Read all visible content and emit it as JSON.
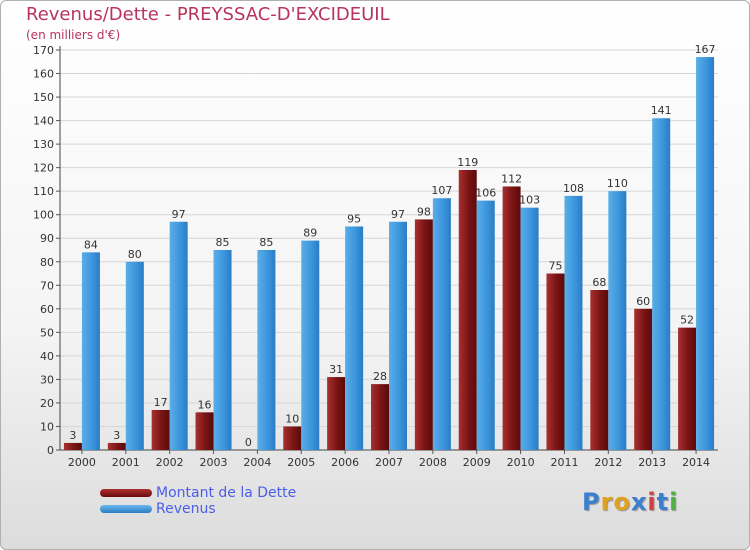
{
  "header": {
    "title": "Revenus/Dette - PREYSSAC-D'EXCIDEUIL",
    "subtitle": "(en milliers d'€)"
  },
  "legend": {
    "items": [
      {
        "label": "Montant de la Dette",
        "color": "#7a1010"
      },
      {
        "label": "Revenus",
        "color": "#3d95dd"
      }
    ]
  },
  "logo": {
    "text": "Proxiti",
    "letters": [
      {
        "ch": "P",
        "color": "#3a7fd0"
      },
      {
        "ch": "r",
        "color": "#e0a020"
      },
      {
        "ch": "o",
        "color": "#e0a020"
      },
      {
        "ch": "x",
        "color": "#3a7fd0"
      },
      {
        "ch": "i",
        "color": "#d04040"
      },
      {
        "ch": "t",
        "color": "#3a7fd0"
      },
      {
        "ch": "i",
        "color": "#50b040"
      }
    ]
  },
  "chart_data": {
    "type": "bar",
    "title": "Revenus/Dette - PREYSSAC-D'EXCIDEUIL",
    "subtitle": "(en milliers d'€)",
    "categories": [
      "2000",
      "2001",
      "2002",
      "2003",
      "2004",
      "2005",
      "2006",
      "2007",
      "2008",
      "2009",
      "2010",
      "2011",
      "2012",
      "2013",
      "2014"
    ],
    "series": [
      {
        "name": "Montant de la Dette",
        "color": "#7a1010",
        "values": [
          3,
          3,
          17,
          16,
          0,
          10,
          31,
          28,
          98,
          119,
          112,
          75,
          68,
          60,
          52
        ]
      },
      {
        "name": "Revenus",
        "color": "#3d95dd",
        "values": [
          84,
          80,
          97,
          85,
          85,
          89,
          95,
          97,
          107,
          106,
          103,
          108,
          110,
          141,
          167
        ]
      }
    ],
    "ylim": [
      0,
      170
    ],
    "yticks": [
      0,
      10,
      20,
      30,
      40,
      50,
      60,
      70,
      80,
      90,
      100,
      110,
      120,
      130,
      140,
      150,
      160,
      170
    ],
    "grid": true,
    "legend_position": "bottom-left"
  }
}
